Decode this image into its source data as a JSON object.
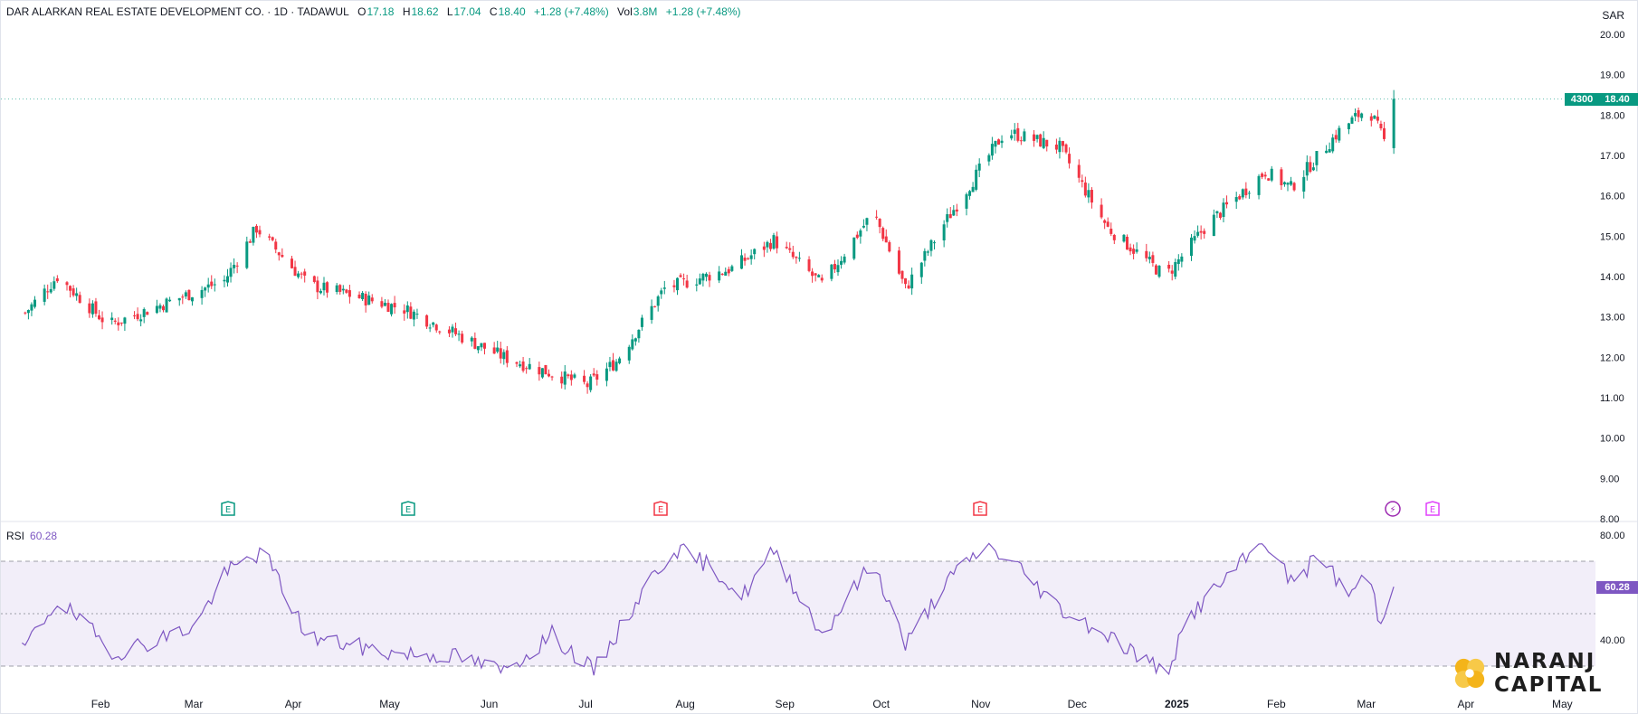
{
  "header": {
    "symbol": "DAR ALARKAN REAL ESTATE DEVELOPMENT CO. · 1D · TADAWUL",
    "open_label": "O",
    "open": "17.18",
    "high_label": "H",
    "high": "18.62",
    "low_label": "L",
    "low": "17.04",
    "close_label": "C",
    "close": "18.40",
    "change": "+1.28 (+7.48%)",
    "vol_label": "Vol",
    "vol": "3.8M",
    "vol_change": "+1.28 (+7.48%)"
  },
  "currency": "SAR",
  "price_tags": {
    "volume_tag": "4300",
    "last_price": "18.40",
    "rsi_value": "60.28"
  },
  "rsi_header": {
    "label": "RSI",
    "value": "60.28"
  },
  "event_markers": [
    {
      "type": "earnings",
      "letter": "E",
      "color": "#089981"
    },
    {
      "type": "earnings",
      "letter": "E",
      "color": "#089981"
    },
    {
      "type": "earnings",
      "letter": "E",
      "color": "#f23645"
    },
    {
      "type": "earnings",
      "letter": "E",
      "color": "#f23645"
    },
    {
      "type": "flash",
      "letter": "⚡",
      "color": "#9c27b0"
    },
    {
      "type": "earnings",
      "letter": "E",
      "color": "#e040fb"
    }
  ],
  "logo": {
    "line1": "NARANJ",
    "line2": "CAPITAL"
  },
  "chart_data": [
    {
      "type": "candlestick",
      "price_axis_ticks": [
        "20.00",
        "19.00",
        "18.00",
        "17.00",
        "16.00",
        "15.00",
        "14.00",
        "13.00",
        "12.00",
        "11.00",
        "10.00",
        "9.00",
        "8.00"
      ],
      "ylim": [
        8.0,
        20.3
      ],
      "x_ticks": [
        "Feb",
        "Mar",
        "Apr",
        "May",
        "Jun",
        "Jul",
        "Aug",
        "Sep",
        "Oct",
        "Nov",
        "Dec",
        "2025",
        "Feb",
        "Mar",
        "Apr",
        "May"
      ],
      "key_points": [
        {
          "date": "2024-01-08",
          "close": 13.1
        },
        {
          "date": "2024-01-18",
          "close": 14.0
        },
        {
          "date": "2024-02-03",
          "close": 12.8
        },
        {
          "date": "2024-03-10",
          "close": 13.9
        },
        {
          "date": "2024-03-20",
          "close": 15.2
        },
        {
          "date": "2024-04-05",
          "close": 13.8
        },
        {
          "date": "2024-05-05",
          "close": 13.2
        },
        {
          "date": "2024-06-05",
          "close": 12.0
        },
        {
          "date": "2024-07-01",
          "close": 11.3
        },
        {
          "date": "2024-07-10",
          "close": 11.9
        },
        {
          "date": "2024-07-25",
          "close": 13.7
        },
        {
          "date": "2024-08-15",
          "close": 14.2
        },
        {
          "date": "2024-08-28",
          "close": 14.9
        },
        {
          "date": "2024-09-12",
          "close": 13.8
        },
        {
          "date": "2024-09-28",
          "close": 15.6
        },
        {
          "date": "2024-10-08",
          "close": 13.7
        },
        {
          "date": "2024-10-20",
          "close": 15.3
        },
        {
          "date": "2024-11-08",
          "close": 17.6
        },
        {
          "date": "2024-11-25",
          "close": 17.2
        },
        {
          "date": "2024-12-10",
          "close": 15.2
        },
        {
          "date": "2024-12-28",
          "close": 14.0
        },
        {
          "date": "2025-01-10",
          "close": 15.3
        },
        {
          "date": "2025-01-28",
          "close": 16.6
        },
        {
          "date": "2025-02-05",
          "close": 16.2
        },
        {
          "date": "2025-02-20",
          "close": 17.6
        },
        {
          "date": "2025-03-01",
          "close": 18.2
        },
        {
          "date": "2025-03-07",
          "close": 17.18
        },
        {
          "date": "2025-03-09",
          "close": 18.4
        }
      ]
    },
    {
      "type": "line",
      "name": "RSI",
      "ylim": [
        20,
        83
      ],
      "axis_ticks": [
        "80.00",
        "40.00"
      ],
      "bands": [
        30,
        50,
        70
      ],
      "color": "#7e57c2",
      "key_points": [
        {
          "date": "2024-01-05",
          "value": 32
        },
        {
          "date": "2024-01-18",
          "value": 55
        },
        {
          "date": "2024-02-05",
          "value": 35
        },
        {
          "date": "2024-03-01",
          "value": 45
        },
        {
          "date": "2024-03-10",
          "value": 65
        },
        {
          "date": "2024-03-22",
          "value": 74
        },
        {
          "date": "2024-04-05",
          "value": 41
        },
        {
          "date": "2024-05-01",
          "value": 35
        },
        {
          "date": "2024-05-20",
          "value": 34
        },
        {
          "date": "2024-06-05",
          "value": 28
        },
        {
          "date": "2024-06-20",
          "value": 42
        },
        {
          "date": "2024-07-03",
          "value": 28
        },
        {
          "date": "2024-07-20",
          "value": 62
        },
        {
          "date": "2024-07-28",
          "value": 75
        },
        {
          "date": "2024-08-10",
          "value": 67
        },
        {
          "date": "2024-08-18",
          "value": 56
        },
        {
          "date": "2024-08-28",
          "value": 74
        },
        {
          "date": "2024-09-12",
          "value": 42
        },
        {
          "date": "2024-09-28",
          "value": 70
        },
        {
          "date": "2024-10-08",
          "value": 38
        },
        {
          "date": "2024-10-20",
          "value": 61
        },
        {
          "date": "2024-11-02",
          "value": 76
        },
        {
          "date": "2024-11-12",
          "value": 68
        },
        {
          "date": "2024-11-25",
          "value": 52
        },
        {
          "date": "2024-12-10",
          "value": 42
        },
        {
          "date": "2024-12-28",
          "value": 27
        },
        {
          "date": "2025-01-05",
          "value": 50
        },
        {
          "date": "2025-01-18",
          "value": 66
        },
        {
          "date": "2025-01-28",
          "value": 78
        },
        {
          "date": "2025-02-05",
          "value": 62
        },
        {
          "date": "2025-02-15",
          "value": 73
        },
        {
          "date": "2025-02-22",
          "value": 56
        },
        {
          "date": "2025-03-01",
          "value": 66
        },
        {
          "date": "2025-03-05",
          "value": 45
        },
        {
          "date": "2025-03-09",
          "value": 60.28
        }
      ]
    }
  ]
}
